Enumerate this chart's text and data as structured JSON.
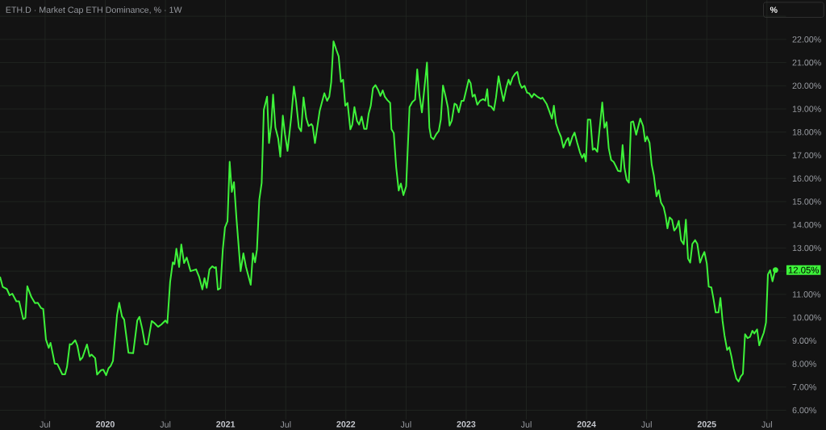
{
  "chart_data": {
    "type": "line",
    "title": "ETH.D · Market Cap ETH Dominance, % · 1W",
    "color": "#3ef23a",
    "x": [
      2019.125,
      2019.148,
      2019.182,
      2019.205,
      2019.227,
      2019.261,
      2019.284,
      2019.318,
      2019.336,
      2019.352,
      2019.386,
      2019.416,
      2019.439,
      2019.466,
      2019.484,
      2019.507,
      2019.53,
      2019.545,
      2019.58,
      2019.602,
      2019.643,
      2019.666,
      2019.682,
      2019.705,
      2019.72,
      2019.75,
      2019.768,
      2019.791,
      2019.811,
      2019.848,
      2019.87,
      2019.886,
      2019.916,
      2019.932,
      2019.966,
      2019.984,
      2020.007,
      2020.027,
      2020.045,
      2020.064,
      2020.098,
      2020.116,
      2020.139,
      2020.157,
      2020.193,
      2020.232,
      2020.266,
      2020.284,
      2020.307,
      2020.33,
      2020.352,
      2020.386,
      2020.409,
      2020.439,
      2020.466,
      2020.5,
      2020.516,
      2020.539,
      2020.561,
      2020.575,
      2020.591,
      2020.614,
      2020.632,
      2020.655,
      2020.677,
      2020.709,
      2020.755,
      2020.78,
      2020.807,
      2020.825,
      2020.843,
      2020.866,
      2020.889,
      2020.909,
      2020.92,
      2020.936,
      2020.957,
      2020.977,
      2020.995,
      2021.016,
      2021.034,
      2021.052,
      2021.07,
      2021.091,
      2021.125,
      2021.148,
      2021.17,
      2021.209,
      2021.227,
      2021.245,
      2021.261,
      2021.28,
      2021.3,
      2021.318,
      2021.345,
      2021.361,
      2021.379,
      2021.395,
      2021.414,
      2021.437,
      2021.455,
      2021.476,
      2021.494,
      2021.515,
      2021.545,
      2021.568,
      2021.586,
      2021.609,
      2021.628,
      2021.648,
      2021.671,
      2021.69,
      2021.713,
      2021.724,
      2021.743,
      2021.782,
      2021.821,
      2021.844,
      2021.862,
      2021.878,
      2021.897,
      2021.92,
      2021.94,
      2021.959,
      2021.977,
      2021.995,
      2022.014,
      2022.037,
      2022.053,
      2022.071,
      2022.092,
      2022.11,
      2022.131,
      2022.152,
      2022.172,
      2022.189,
      2022.207,
      2022.225,
      2022.246,
      2022.267,
      2022.287,
      2022.306,
      2022.324,
      2022.345,
      2022.368,
      2022.379,
      2022.398,
      2022.418,
      2022.439,
      2022.457,
      2022.478,
      2022.501,
      2022.529,
      2022.552,
      2022.575,
      2022.593,
      2022.611,
      2022.632,
      2022.653,
      2022.674,
      2022.694,
      2022.708,
      2022.729,
      2022.752,
      2022.772,
      2022.789,
      2022.807,
      2022.828,
      2022.848,
      2022.862,
      2022.88,
      2022.903,
      2022.92,
      2022.938,
      2022.961,
      2022.979,
      2023.021,
      2023.037,
      2023.053,
      2023.071,
      2023.092,
      2023.115,
      2023.14,
      2023.159,
      2023.175,
      2023.186,
      2023.207,
      2023.23,
      2023.248,
      2023.269,
      2023.287,
      2023.31,
      2023.333,
      2023.352,
      2023.366,
      2023.386,
      2023.407,
      2023.425,
      2023.444,
      2023.462,
      2023.485,
      2023.506,
      2023.524,
      2023.545,
      2023.563,
      2023.591,
      2023.621,
      2023.634,
      2023.668,
      2023.691,
      2023.713,
      2023.729,
      2023.747,
      2023.77,
      2023.788,
      2023.808,
      2023.831,
      2023.849,
      2023.86,
      2023.883,
      2023.901,
      2023.923,
      2023.946,
      2023.964,
      2023.98,
      2023.995,
      2024.011,
      2024.032,
      2024.052,
      2024.068,
      2024.09,
      2024.131,
      2024.149,
      2024.167,
      2024.185,
      2024.205,
      2024.226,
      2024.244,
      2024.262,
      2024.284,
      2024.3,
      2024.316,
      2024.334,
      2024.352,
      2024.37,
      2024.388,
      2024.413,
      2024.447,
      2024.47,
      2024.488,
      2024.503,
      2024.524,
      2024.542,
      2024.56,
      2024.582,
      2024.6,
      2024.619,
      2024.641,
      2024.657,
      2024.673,
      2024.691,
      2024.711,
      2024.729,
      2024.749,
      2024.767,
      2024.786,
      2024.808,
      2024.826,
      2024.844,
      2024.862,
      2024.88,
      2024.903,
      2024.921,
      2024.944,
      2024.962,
      2024.98,
      2025.0,
      2025.016,
      2025.038,
      2025.056,
      2025.074,
      2025.097,
      2025.113,
      2025.131,
      2025.147,
      2025.169,
      2025.187,
      2025.205,
      2025.223,
      2025.246,
      2025.264,
      2025.282,
      2025.3,
      2025.318,
      2025.339,
      2025.359,
      2025.379,
      2025.395,
      2025.418,
      2025.436,
      2025.454,
      2025.474,
      2025.492,
      2025.508,
      2025.526,
      2025.546,
      2025.562,
      2025.571
    ],
    "values": [
      11.76,
      11.32,
      11.23,
      10.96,
      11.03,
      10.7,
      10.7,
      9.93,
      9.99,
      11.35,
      10.88,
      10.62,
      10.64,
      10.41,
      10.37,
      9.05,
      8.69,
      8.91,
      8.01,
      7.99,
      7.55,
      7.55,
      7.87,
      8.85,
      8.84,
      9.02,
      8.79,
      8.16,
      8.28,
      8.84,
      8.32,
      8.4,
      8.25,
      7.54,
      7.73,
      7.75,
      7.51,
      7.81,
      7.91,
      8.13,
      10.11,
      10.64,
      10.05,
      9.91,
      8.48,
      8.46,
      9.87,
      10.03,
      9.52,
      8.85,
      8.84,
      9.85,
      9.76,
      9.6,
      9.7,
      9.87,
      9.76,
      11.53,
      12.38,
      12.3,
      12.97,
      12.18,
      13.15,
      12.35,
      12.59,
      12.0,
      12.08,
      11.76,
      11.21,
      11.7,
      11.28,
      12.08,
      12.21,
      12.14,
      12.18,
      11.2,
      11.27,
      12.94,
      13.89,
      14.15,
      16.72,
      15.42,
      15.84,
      14.24,
      12.0,
      12.77,
      12.18,
      11.41,
      12.77,
      12.38,
      12.94,
      15.07,
      15.8,
      18.97,
      19.53,
      17.53,
      18.26,
      19.62,
      18.2,
      17.73,
      16.94,
      18.71,
      17.9,
      17.19,
      18.61,
      19.97,
      19.32,
      18.2,
      18.04,
      19.5,
      18.59,
      18.26,
      18.35,
      18.26,
      17.53,
      18.91,
      19.68,
      19.35,
      19.53,
      20.15,
      21.92,
      21.56,
      21.27,
      20.17,
      20.26,
      19.14,
      19.26,
      18.12,
      18.32,
      19.08,
      18.49,
      18.32,
      18.67,
      18.14,
      18.14,
      18.79,
      19.14,
      19.89,
      20.03,
      19.83,
      19.56,
      19.8,
      19.53,
      19.38,
      19.26,
      18.12,
      17.96,
      16.49,
      15.48,
      15.78,
      15.28,
      15.66,
      19.08,
      19.3,
      19.4,
      20.71,
      19.62,
      18.85,
      19.91,
      21.0,
      18.2,
      17.78,
      17.69,
      17.92,
      18.05,
      18.55,
      20.01,
      19.56,
      19.06,
      18.28,
      18.49,
      19.23,
      19.17,
      18.85,
      19.35,
      19.35,
      20.26,
      20.11,
      19.53,
      19.62,
      19.18,
      19.35,
      19.42,
      19.36,
      19.85,
      19.14,
      19.11,
      18.94,
      19.5,
      20.41,
      19.91,
      19.34,
      19.91,
      20.26,
      20.05,
      20.36,
      20.52,
      20.6,
      20.12,
      19.91,
      20.0,
      19.7,
      19.67,
      19.5,
      19.65,
      19.53,
      19.44,
      19.49,
      19.22,
      18.9,
      18.58,
      19.14,
      18.37,
      18.01,
      17.8,
      17.33,
      17.63,
      17.75,
      17.42,
      17.8,
      17.98,
      17.54,
      17.12,
      16.89,
      17.06,
      16.73,
      18.54,
      18.54,
      17.24,
      17.3,
      17.15,
      19.28,
      18.19,
      18.43,
      17.3,
      16.8,
      16.71,
      16.53,
      16.33,
      16.3,
      17.44,
      16.45,
      15.94,
      15.82,
      18.43,
      18.46,
      17.89,
      18.58,
      18.27,
      17.6,
      17.81,
      17.54,
      16.59,
      16.12,
      15.23,
      15.49,
      14.96,
      14.76,
      14.4,
      13.85,
      14.32,
      14.22,
      13.75,
      13.89,
      14.17,
      13.34,
      13.16,
      14.22,
      12.54,
      12.37,
      13.18,
      13.34,
      13.18,
      12.37,
      12.63,
      12.83,
      12.33,
      11.33,
      11.3,
      10.79,
      10.22,
      10.22,
      10.85,
      9.85,
      9.23,
      8.6,
      8.72,
      8.31,
      7.81,
      7.36,
      7.24,
      7.46,
      7.57,
      9.28,
      9.11,
      9.16,
      9.43,
      9.31,
      9.49,
      8.8,
      9.08,
      9.35,
      9.79,
      11.86,
      12.04,
      11.56,
      11.92,
      12.05
    ],
    "xlim": [
      2019.125,
      2025.66
    ],
    "ylim": [
      5.6,
      23.7
    ],
    "xticks": [
      {
        "value": 2019.5,
        "label": "Jul"
      },
      {
        "value": 2020,
        "label": "2020"
      },
      {
        "value": 2020.5,
        "label": "Jul"
      },
      {
        "value": 2021,
        "label": "2021"
      },
      {
        "value": 2021.5,
        "label": "Jul"
      },
      {
        "value": 2022,
        "label": "2022"
      },
      {
        "value": 2022.5,
        "label": "Jul"
      },
      {
        "value": 2023,
        "label": "2023"
      },
      {
        "value": 2023.5,
        "label": "Jul"
      },
      {
        "value": 2024,
        "label": "2024"
      },
      {
        "value": 2024.5,
        "label": "Jul"
      },
      {
        "value": 2025,
        "label": "2025"
      },
      {
        "value": 2025.5,
        "label": "Jul"
      }
    ],
    "yticks": [
      {
        "value": 6,
        "label": "6.00%"
      },
      {
        "value": 7,
        "label": "7.00%"
      },
      {
        "value": 8,
        "label": "8.00%"
      },
      {
        "value": 9,
        "label": "9.00%"
      },
      {
        "value": 10,
        "label": "10.00%"
      },
      {
        "value": 11,
        "label": "11.00%"
      },
      {
        "value": 12,
        "label": null
      },
      {
        "value": 13,
        "label": "13.00%"
      },
      {
        "value": 14,
        "label": "14.00%"
      },
      {
        "value": 15,
        "label": "15.00%"
      },
      {
        "value": 16,
        "label": "16.00%"
      },
      {
        "value": 17,
        "label": "17.00%"
      },
      {
        "value": 18,
        "label": "18.00%"
      },
      {
        "value": 19,
        "label": "19.00%"
      },
      {
        "value": 20,
        "label": "20.00%"
      },
      {
        "value": 21,
        "label": "21.00%"
      },
      {
        "value": 22,
        "label": "22.00%"
      },
      {
        "value": 23,
        "label": null
      }
    ],
    "grid": true,
    "annotations": [
      {
        "text": "12.05%",
        "x": 2025.571,
        "y": 12.05
      },
      "%"
    ]
  }
}
